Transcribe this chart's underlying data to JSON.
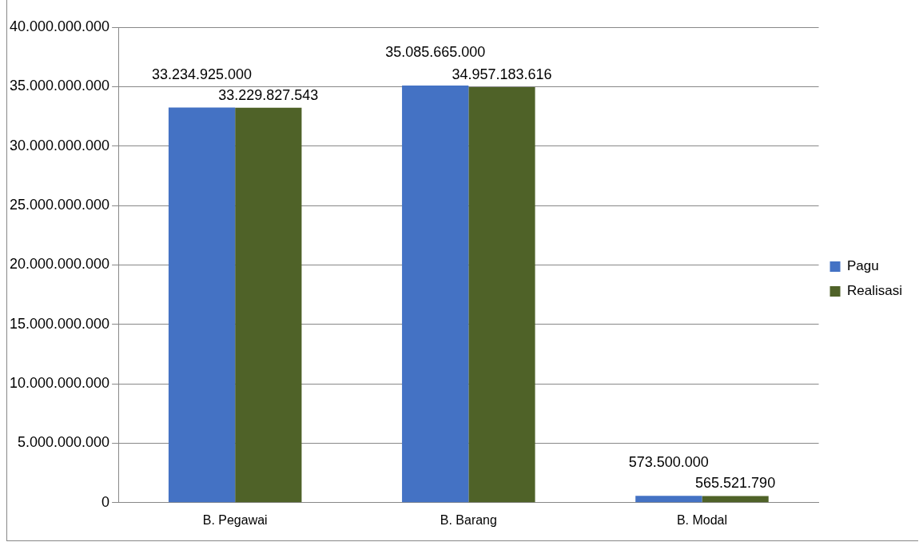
{
  "chart_data": {
    "type": "bar",
    "categories": [
      "B. Pegawai",
      "B. Barang",
      "B. Modal"
    ],
    "series": [
      {
        "name": "Pagu",
        "color": "#4472c4",
        "values": [
          33234925000,
          35085665000,
          573500000
        ],
        "value_labels": [
          "33.234.925.000",
          "35.085.665.000",
          "573.500.000"
        ]
      },
      {
        "name": "Realisasi",
        "color": "#4f6228",
        "values": [
          33229827543,
          34957183616,
          565521790
        ],
        "value_labels": [
          "33.229.827.543",
          "34.957.183.616",
          "565.521.790"
        ]
      }
    ],
    "ylim": [
      0,
      40000000000
    ],
    "yticks": [
      {
        "value": 0,
        "label": "0"
      },
      {
        "value": 5000000000,
        "label": "5.000.000.000"
      },
      {
        "value": 10000000000,
        "label": "10.000.000.000"
      },
      {
        "value": 15000000000,
        "label": "15.000.000.000"
      },
      {
        "value": 20000000000,
        "label": "20.000.000.000"
      },
      {
        "value": 25000000000,
        "label": "25.000.000.000"
      },
      {
        "value": 30000000000,
        "label": "30.000.000.000"
      },
      {
        "value": 35000000000,
        "label": "35.000.000.000"
      },
      {
        "value": 40000000000,
        "label": "40.000.000.000"
      }
    ],
    "grid": "y",
    "legend": "right"
  }
}
